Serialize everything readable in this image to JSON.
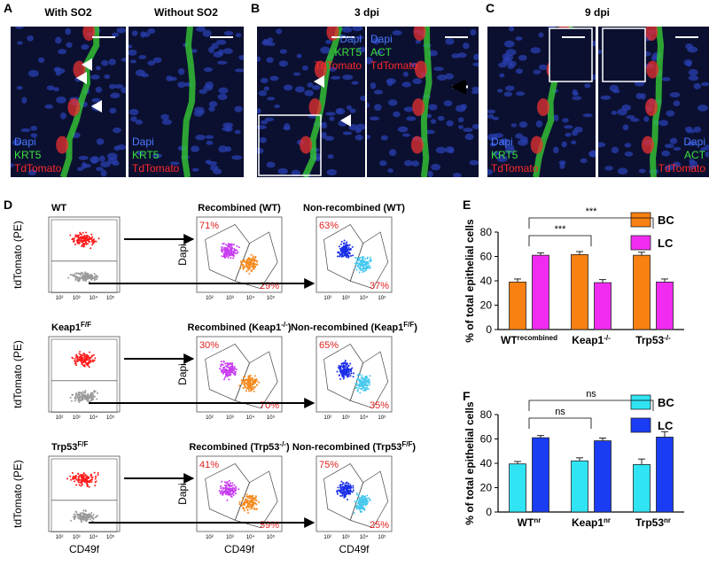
{
  "figure": {
    "panel_letters": [
      "A",
      "B",
      "C",
      "D",
      "E",
      "F"
    ],
    "microscopy": [
      {
        "title": "With SO2",
        "channels": [
          "Dapi",
          "KRT5",
          "TdTomato"
        ]
      },
      {
        "title": "Without SO2",
        "channels": [
          "Dapi",
          "KRT5",
          "TdTomato"
        ]
      },
      {
        "title": "3 dpi",
        "channels": [
          "Dapi",
          "KRT5",
          "TdTomato"
        ]
      },
      {
        "channels": [
          "Dapi",
          "ACT",
          "TdTomato"
        ]
      },
      {
        "title": "9 dpi",
        "channels": [
          "Dapi",
          "KRT5",
          "TdTomato"
        ]
      },
      {
        "channels": [
          "Dapi",
          "ACT",
          "TdTomato"
        ]
      }
    ],
    "flow": {
      "y_label": "tdTomato (PE)",
      "dapi_label": "Dapi",
      "x_label": "CD49f",
      "log_ticks": [
        "10²",
        "10³",
        "10⁴",
        "10⁵"
      ],
      "rows": [
        {
          "genotype": "WT",
          "plots": [
            {
              "main": "Recombined (WT)",
              "top": "71%",
              "bottom": "29%"
            },
            {
              "main": "Non-recombined (WT)",
              "top": "63%",
              "bottom": "37%"
            }
          ]
        },
        {
          "genotype": "Keap1",
          "genotype_sup": "F/F",
          "plots": [
            {
              "main": "Recombined (Keap1",
              "sup": "-/-",
              "tail": ")",
              "top": "30%",
              "bottom": "70%"
            },
            {
              "main": "Non-recombined (Keap1",
              "sup": "F/F",
              "tail": ")",
              "top": "65%",
              "bottom": "35%"
            }
          ]
        },
        {
          "genotype": "Trp53",
          "genotype_sup": "F/F",
          "plots": [
            {
              "main": "Recombined (Trp53",
              "sup": "-/-",
              "tail": ")",
              "top": "41%",
              "bottom": "59%"
            },
            {
              "main": "Non-recombined (Trp53",
              "sup": "F/F",
              "tail": ")",
              "top": "75%",
              "bottom": "25%"
            }
          ]
        }
      ]
    }
  },
  "chart_data": [
    {
      "type": "bar",
      "categories": [
        "WT",
        "Keap1",
        "Trp53"
      ],
      "category_sups": [
        "recombined",
        "-/-",
        "-/-"
      ],
      "y_label": "% of total epithelial cells",
      "ylim": [
        0,
        80
      ],
      "yticks": [
        0,
        20,
        40,
        60,
        80
      ],
      "legend": "upper right",
      "annotations": [
        "***",
        "***"
      ],
      "series": [
        {
          "name": "BC",
          "color": "#f98012",
          "values": [
            39,
            61.5,
            61
          ],
          "errors": [
            2.5,
            2.5,
            2.5
          ]
        },
        {
          "name": "LC",
          "color": "#f02cf0",
          "values": [
            61,
            38.5,
            39
          ],
          "errors": [
            2,
            2.5,
            2.5
          ]
        }
      ]
    },
    {
      "type": "bar",
      "categories": [
        "WT",
        "Keap1",
        "Trp53"
      ],
      "category_sups": [
        "nr",
        "nr",
        "nr"
      ],
      "y_label": "% of total epithelial cells",
      "ylim": [
        0,
        80
      ],
      "yticks": [
        0,
        20,
        40,
        60,
        80
      ],
      "legend": "upper right",
      "annotations": [
        "ns",
        "ns"
      ],
      "series": [
        {
          "name": "BC",
          "color": "#30e4f4",
          "values": [
            39.5,
            42,
            39
          ],
          "errors": [
            2,
            2.5,
            4.5
          ]
        },
        {
          "name": "LC",
          "color": "#1a3cf2",
          "values": [
            61,
            58.5,
            61.5
          ],
          "errors": [
            1.8,
            2.2,
            4.5
          ]
        }
      ]
    }
  ]
}
